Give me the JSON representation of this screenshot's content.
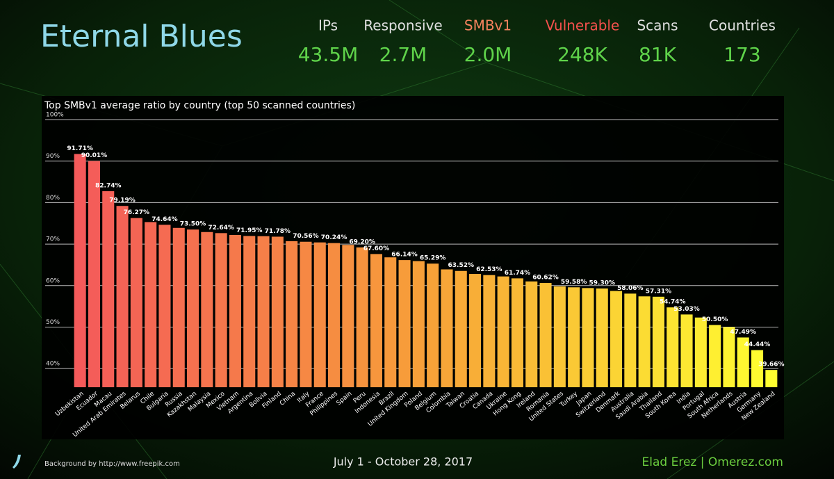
{
  "header": {
    "title": "Eternal Blues",
    "stats": [
      {
        "label": "IPs",
        "value": "43.5M",
        "color": "#e0e0e0"
      },
      {
        "label": "Responsive",
        "value": "2.7M",
        "color": "#e0e0e0"
      },
      {
        "label": "SMBv1",
        "value": "2.0M",
        "color": "#f5825e"
      },
      {
        "label": "Vulnerable",
        "value": "248K",
        "color": "#f4514d"
      },
      {
        "label": "Scans",
        "value": "81K",
        "color": "#e0e0e0"
      },
      {
        "label": "Countries",
        "value": "173",
        "color": "#e0e0e0"
      }
    ]
  },
  "chart_data": {
    "type": "bar",
    "title": "Top SMBv1 average ratio by country (top 50 scanned countries)",
    "categories": [
      "Uzbekistan",
      "Ecuador",
      "Macau",
      "United Arab Emirates",
      "Belarus",
      "Chile",
      "Bulgaria",
      "Russia",
      "Kazakhstan",
      "Malaysia",
      "Mexico",
      "Vietnam",
      "Argentina",
      "Bolivia",
      "Finland",
      "China",
      "Italy",
      "France",
      "Philippines",
      "Spain",
      "Peru",
      "Indonesia",
      "Brazil",
      "United Kingdom",
      "Poland",
      "Belgium",
      "Colombia",
      "Taiwan",
      "Croatia",
      "Canada",
      "Ukraine",
      "Hong Kong",
      "Ireland",
      "Romania",
      "United States",
      "Turkey",
      "Japan",
      "Switzerland",
      "Denmark",
      "Australia",
      "Saudi Arabia",
      "Thailand",
      "South Korea",
      "India",
      "Portugal",
      "South Africa",
      "Netherlands",
      "Austria",
      "Germany",
      "New Zealand"
    ],
    "values": [
      91.71,
      90.01,
      82.74,
      79.19,
      76.27,
      75.3,
      74.64,
      73.9,
      73.5,
      72.9,
      72.64,
      72.2,
      71.95,
      71.9,
      71.78,
      70.7,
      70.56,
      70.4,
      70.24,
      69.8,
      69.2,
      67.6,
      66.8,
      66.14,
      65.9,
      65.29,
      63.9,
      63.52,
      62.8,
      62.53,
      62.2,
      61.74,
      61.0,
      60.62,
      59.8,
      59.58,
      59.4,
      59.3,
      58.7,
      58.06,
      57.4,
      57.31,
      54.74,
      53.03,
      52.3,
      50.5,
      50.0,
      47.49,
      44.44,
      39.66
    ],
    "value_labels": [
      "91.71%",
      "90.01%",
      "82.74%",
      "79.19%",
      "76.27%",
      null,
      "74.64%",
      null,
      "73.50%",
      null,
      "72.64%",
      null,
      "71.95%",
      null,
      "71.78%",
      null,
      "70.56%",
      null,
      "70.24%",
      null,
      "69.20%",
      "67.60%",
      null,
      "66.14%",
      null,
      "65.29%",
      null,
      "63.52%",
      null,
      "62.53%",
      null,
      "61.74%",
      null,
      "60.62%",
      null,
      "59.58%",
      null,
      "59.30%",
      null,
      "58.06%",
      null,
      "57.31%",
      "54.74%",
      "53.03%",
      null,
      "50.50%",
      null,
      "47.49%",
      "44.44%",
      "39.66%"
    ],
    "colors": [
      "#f45a5a",
      "#f7a038",
      "#ffff30"
    ],
    "ylim": [
      35.5,
      100
    ],
    "yticks": [
      {
        "value": 40,
        "label": "40%"
      },
      {
        "value": 50,
        "label": "50%"
      },
      {
        "value": 60,
        "label": "60%"
      },
      {
        "value": 70,
        "label": "70%"
      },
      {
        "value": 80,
        "label": "80%"
      },
      {
        "value": 90,
        "label": "90%"
      },
      {
        "value": 100,
        "label": "100%"
      }
    ],
    "grid": true
  },
  "footer": {
    "credit": "Background by http://www.freepik.com",
    "dates": "July 1 - October 28, 2017",
    "author": "Elad Erez | Omerez.com"
  }
}
